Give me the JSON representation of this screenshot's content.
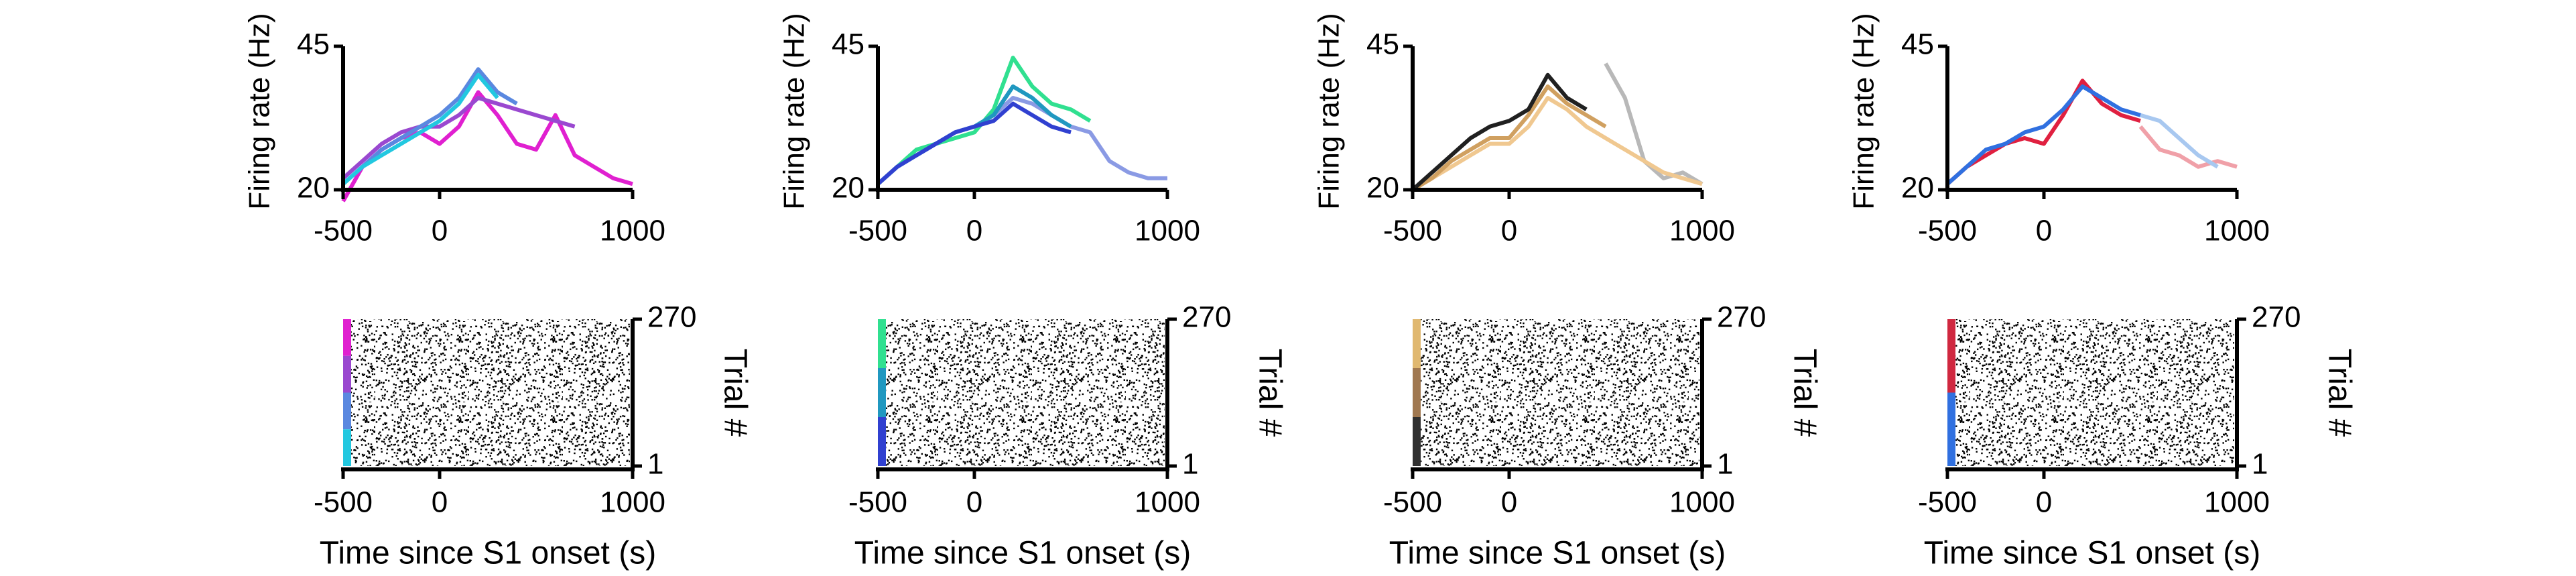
{
  "chart_data": [
    {
      "type": "line",
      "ylabel": "Firing rate (Hz)",
      "xlim": [
        -500,
        1000
      ],
      "xticks": [
        -500,
        0,
        1000
      ],
      "ylim": [
        20,
        45
      ],
      "yticks": [
        20,
        45
      ],
      "x": [
        -500,
        -400,
        -300,
        -200,
        -100,
        0,
        100,
        200,
        300,
        400,
        500,
        600,
        700,
        800,
        900,
        1000
      ],
      "series": [
        {
          "color": "#e020d0",
          "values": [
            18,
            24,
            27,
            29,
            30,
            28,
            31,
            37,
            33,
            28,
            27,
            33,
            26,
            24,
            22,
            21
          ]
        },
        {
          "color": "#9a48d0",
          "values": [
            22,
            25,
            28,
            30,
            31,
            31,
            33,
            36,
            35,
            34,
            33,
            32,
            31,
            null,
            null,
            null
          ]
        },
        {
          "color": "#5a88e0",
          "values": [
            21,
            24,
            27,
            29,
            31,
            33,
            36,
            41,
            37,
            35,
            null,
            null,
            null,
            null,
            null,
            null
          ]
        },
        {
          "color": "#22c8e0",
          "values": [
            21,
            24,
            26,
            28,
            30,
            32,
            35,
            40,
            36,
            null,
            null,
            null,
            null,
            null,
            null,
            null
          ]
        }
      ],
      "raster": {
        "xlabel": "Time since S1 onset (s)",
        "ylabel": "Trial #",
        "xlim": [
          -500,
          1000
        ],
        "xticks": [
          -500,
          0,
          1000
        ],
        "ylim": [
          1,
          270
        ],
        "yticks": [
          1,
          270
        ],
        "colors": [
          "#e020d0",
          "#9a48d0",
          "#5a88e0",
          "#22c8e0"
        ]
      }
    },
    {
      "type": "line",
      "ylabel": "Firing rate (Hz)",
      "xlim": [
        -500,
        1000
      ],
      "xticks": [
        -500,
        0,
        1000
      ],
      "ylim": [
        20,
        45
      ],
      "yticks": [
        20,
        45
      ],
      "x": [
        -500,
        -400,
        -300,
        -200,
        -100,
        0,
        100,
        200,
        300,
        400,
        500,
        600,
        700,
        800,
        900,
        1000
      ],
      "series": [
        {
          "color": "#30e090",
          "values": [
            21,
            24,
            27,
            28,
            29,
            30,
            34,
            43,
            38,
            35,
            34,
            32,
            null,
            null,
            null,
            null
          ]
        },
        {
          "color": "#8a9ae4",
          "values": [
            21,
            24,
            26,
            28,
            30,
            31,
            33,
            36,
            35,
            33,
            31,
            30,
            25,
            23,
            22,
            22
          ]
        },
        {
          "color": "#2098c0",
          "values": [
            21,
            24,
            26,
            28,
            30,
            31,
            33,
            38,
            36,
            33,
            31,
            null,
            null,
            null,
            null,
            null
          ]
        },
        {
          "color": "#3040d0",
          "values": [
            21,
            24,
            26,
            28,
            30,
            31,
            32,
            35,
            33,
            31,
            30,
            null,
            null,
            null,
            null,
            null
          ]
        }
      ],
      "raster": {
        "xlabel": "Time since S1 onset (s)",
        "ylabel": "Trial #",
        "xlim": [
          -500,
          1000
        ],
        "xticks": [
          -500,
          0,
          1000
        ],
        "ylim": [
          1,
          270
        ],
        "yticks": [
          1,
          270
        ],
        "colors": [
          "#30e090",
          "#2098c0",
          "#3040d0"
        ]
      }
    },
    {
      "type": "line",
      "ylabel": "Firing rate (Hz)",
      "xlim": [
        -500,
        1000
      ],
      "xticks": [
        -500,
        0,
        1000
      ],
      "ylim": [
        20,
        45
      ],
      "yticks": [
        20,
        45
      ],
      "x": [
        -500,
        -400,
        -300,
        -200,
        -100,
        0,
        100,
        200,
        300,
        400,
        500,
        600,
        700,
        800,
        900,
        1000
      ],
      "series": [
        {
          "color": "#b8b8b8",
          "values": [
            null,
            null,
            null,
            null,
            null,
            null,
            null,
            null,
            null,
            null,
            42,
            36,
            25,
            22,
            23,
            21
          ]
        },
        {
          "color": "#f0c890",
          "values": [
            20,
            22,
            24,
            26,
            28,
            28,
            31,
            36,
            34,
            31,
            29,
            27,
            25,
            23,
            22,
            21
          ]
        },
        {
          "color": "#d0a060",
          "values": [
            20,
            22,
            25,
            27,
            29,
            29,
            33,
            38,
            35,
            33,
            31,
            null,
            null,
            null,
            null,
            null
          ]
        },
        {
          "color": "#202020",
          "values": [
            20,
            23,
            26,
            29,
            31,
            32,
            34,
            40,
            36,
            34,
            null,
            null,
            null,
            null,
            null,
            null
          ]
        }
      ],
      "raster": {
        "xlabel": "Time since S1 onset (s)",
        "ylabel": "Trial #",
        "xlim": [
          -500,
          1000
        ],
        "xticks": [
          -500,
          0,
          1000
        ],
        "ylim": [
          1,
          270
        ],
        "yticks": [
          1,
          270
        ],
        "colors": [
          "#e0b870",
          "#a07850",
          "#303030"
        ]
      }
    },
    {
      "type": "line",
      "ylabel": "Firing rate (Hz)",
      "xlim": [
        -500,
        1000
      ],
      "xticks": [
        -500,
        0,
        1000
      ],
      "ylim": [
        20,
        45
      ],
      "yticks": [
        20,
        45
      ],
      "x": [
        -500,
        -400,
        -300,
        -200,
        -100,
        0,
        100,
        200,
        300,
        400,
        500,
        600,
        700,
        800,
        900,
        1000
      ],
      "series": [
        {
          "color": "#f0a0a8",
          "values": [
            null,
            null,
            null,
            null,
            null,
            null,
            null,
            null,
            null,
            null,
            31,
            27,
            26,
            24,
            25,
            24
          ]
        },
        {
          "color": "#a8c8f0",
          "values": [
            null,
            null,
            null,
            null,
            null,
            null,
            null,
            null,
            null,
            null,
            33,
            32,
            29,
            26,
            24,
            null
          ]
        },
        {
          "color": "#e02040",
          "values": [
            21,
            24,
            26,
            28,
            29,
            28,
            33,
            39,
            35,
            33,
            32,
            null,
            null,
            null,
            null,
            null
          ]
        },
        {
          "color": "#3070e0",
          "values": [
            21,
            24,
            27,
            28,
            30,
            31,
            34,
            38,
            36,
            34,
            33,
            null,
            null,
            null,
            null,
            null
          ]
        }
      ],
      "raster": {
        "xlabel": "Time since S1 onset (s)",
        "ylabel": "Trial #",
        "xlim": [
          -500,
          1000
        ],
        "xticks": [
          -500,
          0,
          1000
        ],
        "ylim": [
          1,
          270
        ],
        "yticks": [
          1,
          270
        ],
        "colors": [
          "#d02840",
          "#3070e0"
        ]
      }
    }
  ]
}
